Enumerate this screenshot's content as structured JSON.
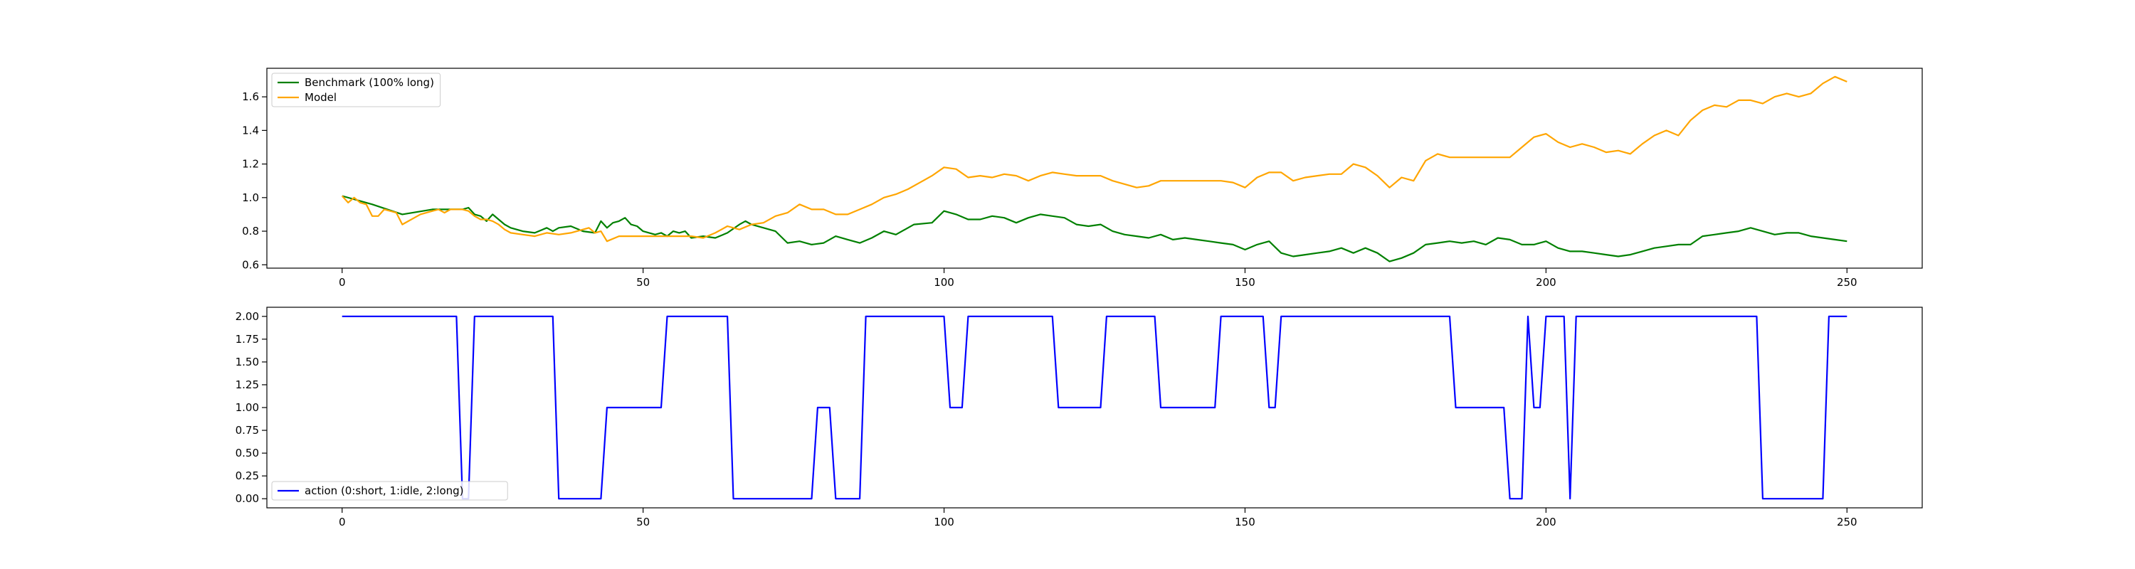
{
  "chart_data": [
    {
      "type": "line",
      "title": "",
      "xlabel": "",
      "ylabel": "",
      "xlim": [
        -12.5,
        262.5
      ],
      "ylim": [
        0.58,
        1.77
      ],
      "xticks": [
        0,
        50,
        100,
        150,
        200,
        250
      ],
      "yticks": [
        0.6,
        0.8,
        1.0,
        1.2,
        1.4,
        1.6
      ],
      "ytick_labels": [
        "0.6",
        "0.8",
        "1.0",
        "1.2",
        "1.4",
        "1.6"
      ],
      "grid": false,
      "legend": "top-left",
      "series": [
        {
          "name": "Benchmark (100% long)",
          "color": "#008000",
          "x": [
            0,
            5,
            10,
            15,
            20,
            21,
            22,
            23,
            24,
            25,
            26,
            27,
            28,
            30,
            32,
            34,
            35,
            36,
            38,
            40,
            42,
            43,
            44,
            45,
            46,
            47,
            48,
            49,
            50,
            51,
            52,
            53,
            54,
            55,
            56,
            57,
            58,
            60,
            62,
            64,
            66,
            67,
            68,
            70,
            72,
            74,
            76,
            78,
            80,
            82,
            84,
            86,
            88,
            90,
            92,
            95,
            98,
            100,
            102,
            104,
            106,
            108,
            110,
            112,
            114,
            116,
            118,
            120,
            122,
            124,
            126,
            128,
            130,
            132,
            134,
            136,
            138,
            140,
            142,
            144,
            146,
            148,
            150,
            152,
            154,
            156,
            158,
            160,
            162,
            164,
            166,
            168,
            170,
            172,
            174,
            176,
            178,
            180,
            182,
            184,
            186,
            188,
            190,
            192,
            194,
            196,
            198,
            200,
            202,
            204,
            206,
            208,
            210,
            212,
            214,
            216,
            218,
            220,
            222,
            224,
            226,
            228,
            230,
            232,
            234,
            236,
            238,
            240,
            242,
            244,
            246,
            248,
            250
          ],
          "values": [
            1.01,
            0.96,
            0.9,
            0.93,
            0.93,
            0.94,
            0.9,
            0.89,
            0.86,
            0.9,
            0.87,
            0.84,
            0.82,
            0.8,
            0.79,
            0.82,
            0.8,
            0.82,
            0.83,
            0.8,
            0.79,
            0.86,
            0.82,
            0.85,
            0.86,
            0.88,
            0.84,
            0.83,
            0.8,
            0.79,
            0.78,
            0.79,
            0.77,
            0.8,
            0.79,
            0.8,
            0.76,
            0.77,
            0.76,
            0.79,
            0.84,
            0.86,
            0.84,
            0.82,
            0.8,
            0.73,
            0.74,
            0.72,
            0.73,
            0.77,
            0.75,
            0.73,
            0.76,
            0.8,
            0.78,
            0.84,
            0.85,
            0.92,
            0.9,
            0.87,
            0.87,
            0.89,
            0.88,
            0.85,
            0.88,
            0.9,
            0.89,
            0.88,
            0.84,
            0.83,
            0.84,
            0.8,
            0.78,
            0.77,
            0.76,
            0.78,
            0.75,
            0.76,
            0.75,
            0.74,
            0.73,
            0.72,
            0.69,
            0.72,
            0.74,
            0.67,
            0.65,
            0.66,
            0.67,
            0.68,
            0.7,
            0.67,
            0.7,
            0.67,
            0.62,
            0.64,
            0.67,
            0.72,
            0.73,
            0.74,
            0.73,
            0.74,
            0.72,
            0.76,
            0.75,
            0.72,
            0.72,
            0.74,
            0.7,
            0.68,
            0.68,
            0.67,
            0.66,
            0.65,
            0.66,
            0.68,
            0.7,
            0.71,
            0.72,
            0.72,
            0.77,
            0.78,
            0.79,
            0.8,
            0.82,
            0.8,
            0.78,
            0.79,
            0.79,
            0.77,
            0.76,
            0.75,
            0.74
          ]
        },
        {
          "name": "Model",
          "color": "#ffa500",
          "x": [
            0,
            1,
            2,
            3,
            4,
            5,
            6,
            7,
            8,
            9,
            10,
            11,
            12,
            13,
            14,
            15,
            16,
            17,
            18,
            19,
            20,
            21,
            22,
            23,
            24,
            25,
            26,
            27,
            28,
            30,
            32,
            34,
            36,
            38,
            40,
            41,
            42,
            43,
            44,
            46,
            48,
            50,
            52,
            54,
            56,
            58,
            60,
            62,
            64,
            66,
            68,
            70,
            72,
            74,
            76,
            78,
            80,
            82,
            84,
            86,
            88,
            90,
            92,
            94,
            96,
            98,
            100,
            102,
            104,
            106,
            108,
            110,
            112,
            114,
            116,
            118,
            120,
            122,
            124,
            126,
            128,
            130,
            132,
            134,
            136,
            138,
            140,
            142,
            144,
            146,
            148,
            150,
            152,
            154,
            156,
            158,
            160,
            162,
            164,
            166,
            168,
            170,
            172,
            174,
            176,
            178,
            180,
            182,
            184,
            186,
            188,
            190,
            192,
            194,
            196,
            198,
            200,
            202,
            204,
            206,
            208,
            210,
            212,
            214,
            216,
            218,
            220,
            222,
            224,
            226,
            228,
            230,
            232,
            234,
            236,
            238,
            240,
            242,
            244,
            246,
            248,
            250
          ],
          "values": [
            1.01,
            0.97,
            1.0,
            0.97,
            0.96,
            0.89,
            0.89,
            0.93,
            0.92,
            0.91,
            0.84,
            0.86,
            0.88,
            0.9,
            0.91,
            0.92,
            0.93,
            0.91,
            0.93,
            0.93,
            0.93,
            0.92,
            0.89,
            0.87,
            0.87,
            0.86,
            0.84,
            0.81,
            0.79,
            0.78,
            0.77,
            0.79,
            0.78,
            0.79,
            0.81,
            0.82,
            0.79,
            0.8,
            0.74,
            0.77,
            0.77,
            0.77,
            0.77,
            0.77,
            0.77,
            0.77,
            0.76,
            0.79,
            0.83,
            0.81,
            0.84,
            0.85,
            0.89,
            0.91,
            0.96,
            0.93,
            0.93,
            0.9,
            0.9,
            0.93,
            0.96,
            1.0,
            1.02,
            1.05,
            1.09,
            1.13,
            1.18,
            1.17,
            1.12,
            1.13,
            1.12,
            1.14,
            1.13,
            1.1,
            1.13,
            1.15,
            1.14,
            1.13,
            1.13,
            1.13,
            1.1,
            1.08,
            1.06,
            1.07,
            1.1,
            1.1,
            1.1,
            1.1,
            1.1,
            1.1,
            1.09,
            1.06,
            1.12,
            1.15,
            1.15,
            1.1,
            1.12,
            1.13,
            1.14,
            1.14,
            1.2,
            1.18,
            1.13,
            1.06,
            1.12,
            1.1,
            1.22,
            1.26,
            1.24,
            1.24,
            1.24,
            1.24,
            1.24,
            1.24,
            1.3,
            1.36,
            1.38,
            1.33,
            1.3,
            1.32,
            1.3,
            1.27,
            1.28,
            1.26,
            1.32,
            1.37,
            1.4,
            1.37,
            1.46,
            1.52,
            1.55,
            1.54,
            1.58,
            1.58,
            1.56,
            1.6,
            1.62,
            1.6,
            1.62,
            1.68,
            1.72,
            1.69
          ]
        }
      ]
    },
    {
      "type": "line",
      "title": "",
      "xlabel": "",
      "ylabel": "",
      "xlim": [
        -12.5,
        262.5
      ],
      "ylim": [
        -0.1,
        2.1
      ],
      "xticks": [
        0,
        50,
        100,
        150,
        200,
        250
      ],
      "yticks": [
        0.0,
        0.25,
        0.5,
        0.75,
        1.0,
        1.25,
        1.5,
        1.75,
        2.0
      ],
      "ytick_labels": [
        "0.00",
        "0.25",
        "0.50",
        "0.75",
        "1.00",
        "1.25",
        "1.50",
        "1.75",
        "2.00"
      ],
      "grid": false,
      "legend": "bottom-left",
      "series": [
        {
          "name": "action (0:short, 1:idle, 2:long)",
          "color": "#0000ff",
          "x": [
            0,
            19,
            20,
            21,
            22,
            35,
            36,
            43,
            44,
            53,
            54,
            64,
            65,
            78,
            79,
            81,
            82,
            86,
            87,
            100,
            101,
            103,
            104,
            118,
            119,
            126,
            127,
            135,
            136,
            145,
            146,
            153,
            154,
            155,
            156,
            184,
            185,
            193,
            194,
            196,
            197,
            198,
            199,
            200,
            201,
            203,
            204,
            205,
            235,
            236,
            246,
            247,
            250
          ],
          "values": [
            2,
            2,
            0,
            0,
            2,
            2,
            0,
            0,
            1,
            1,
            2,
            2,
            0,
            0,
            1,
            1,
            0,
            0,
            2,
            2,
            1,
            1,
            2,
            2,
            1,
            1,
            2,
            2,
            1,
            1,
            2,
            2,
            1,
            1,
            2,
            2,
            1,
            1,
            0,
            0,
            2,
            1,
            1,
            2,
            2,
            2,
            0,
            2,
            2,
            0,
            0,
            2,
            2
          ]
        }
      ]
    }
  ]
}
